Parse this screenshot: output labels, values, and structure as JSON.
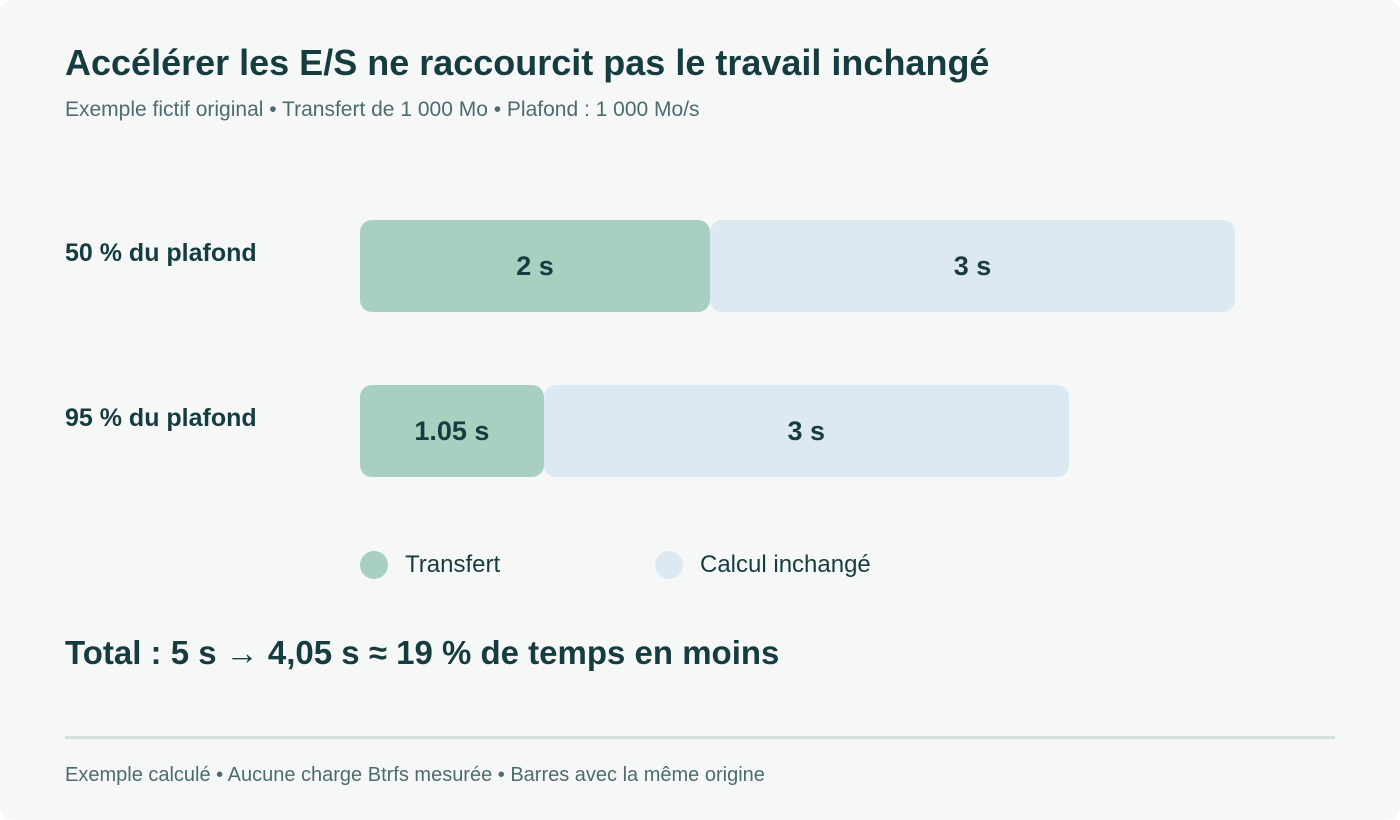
{
  "header": {
    "title": "Accélérer les E/S ne raccourcit pas le travail inchangé",
    "subtitle": "Exemple fictif original • Transfert de 1 000 Mo • Plafond : 1 000 Mo/s"
  },
  "colors": {
    "transfer": "#a8cfbf",
    "compute": "#dce9f2",
    "text": "#173c40",
    "muted": "#4d6b6e",
    "background": "#f6f8f8"
  },
  "chart_data": {
    "type": "bar",
    "orientation": "horizontal",
    "stacked": true,
    "categories": [
      "50 % du plafond",
      "95 % du plafond"
    ],
    "series": [
      {
        "name": "Transfert",
        "values": [
          2,
          1.05
        ],
        "labels": [
          "2 s",
          "1.05 s"
        ]
      },
      {
        "name": "Calcul inchangé",
        "values": [
          3,
          3
        ],
        "labels": [
          "3 s",
          "3 s"
        ]
      }
    ],
    "xlim": [
      0,
      5
    ],
    "grid": false,
    "legend": "bottom"
  },
  "summary": {
    "total": "Total : 5 s → 4,05 s ≈ 19 % de temps en moins"
  },
  "footer": {
    "note": "Exemple calculé • Aucune charge Btrfs mesurée • Barres avec la même origine"
  }
}
